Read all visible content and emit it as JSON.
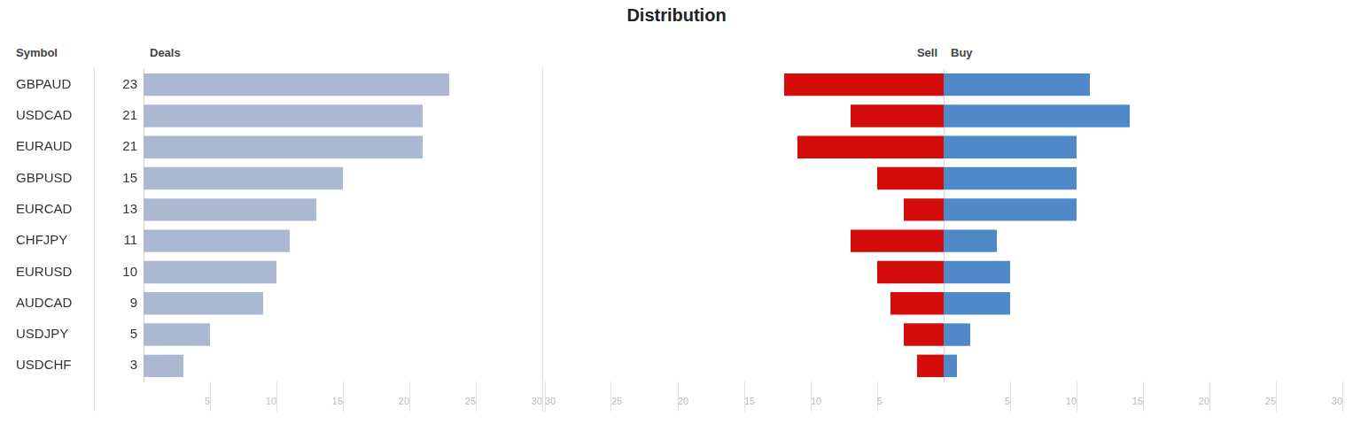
{
  "title": "Distribution",
  "chart_data": [
    {
      "type": "bar",
      "orientation": "horizontal",
      "y_label": "Symbol",
      "categories": [
        "GBPAUD",
        "USDCAD",
        "EURAUD",
        "GBPUSD",
        "EURCAD",
        "CHFJPY",
        "EURUSD",
        "AUDCAD",
        "USDJPY",
        "USDCHF"
      ],
      "series": [
        {
          "name": "Deals",
          "color": "#aab8d2",
          "values": [
            23,
            21,
            21,
            15,
            13,
            11,
            10,
            9,
            5,
            3
          ]
        }
      ],
      "xlim": [
        0,
        30
      ],
      "xticks": [
        5,
        10,
        15,
        20,
        25,
        30
      ],
      "data_labels": true,
      "grid": false
    },
    {
      "type": "bar",
      "orientation": "horizontal",
      "tick_labels": "x",
      "categories": [
        "GBPAUD",
        "USDCAD",
        "EURAUD",
        "GBPUSD",
        "EURCAD",
        "CHFJPY",
        "EURUSD",
        "AUDCAD",
        "USDJPY",
        "USDCHF"
      ],
      "series": [
        {
          "name": "Sell",
          "color": "#d40c0c",
          "values": [
            12,
            7,
            11,
            5,
            3,
            7,
            5,
            4,
            3,
            2
          ]
        },
        {
          "name": "Buy",
          "color": "#4f89c8",
          "values": [
            11,
            14,
            10,
            10,
            10,
            4,
            5,
            5,
            2,
            1
          ]
        }
      ],
      "xlim": [
        0,
        30
      ],
      "xticks": [
        5,
        10,
        15,
        20,
        25,
        30
      ],
      "grid": false
    }
  ]
}
